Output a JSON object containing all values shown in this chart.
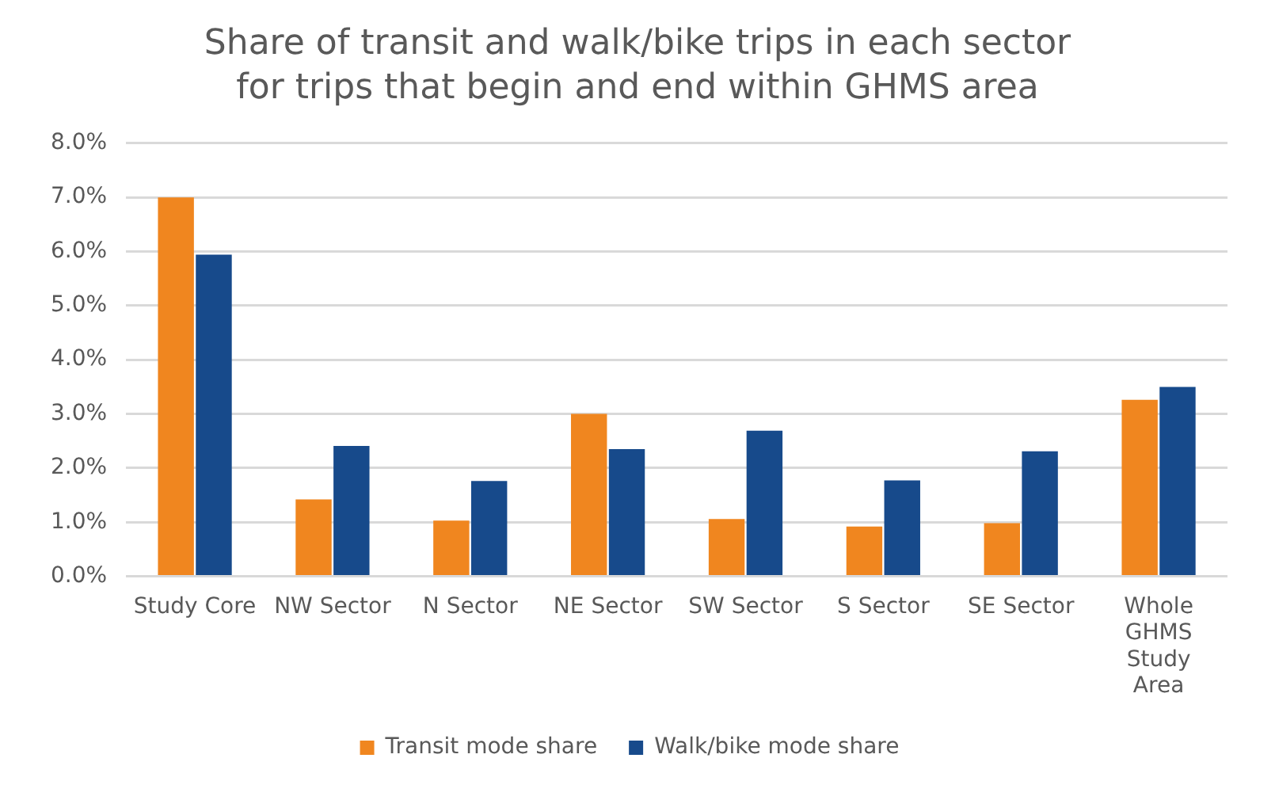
{
  "chart_data": {
    "type": "bar",
    "title": "Share of transit and walk/bike trips in each sector for trips that begin and end within GHMS area",
    "categories": [
      "Study Core",
      "NW Sector",
      "N Sector",
      "NE Sector",
      "SW Sector",
      "S Sector",
      "SE Sector",
      "Whole GHMS Study Area"
    ],
    "series": [
      {
        "name": "Transit mode share",
        "color": "#f0861f",
        "values": [
          7.0,
          1.42,
          1.03,
          3.0,
          1.06,
          0.92,
          0.98,
          3.26
        ]
      },
      {
        "name": "Walk/bike mode share",
        "color": "#174a8b",
        "values": [
          5.94,
          2.41,
          1.76,
          2.35,
          2.69,
          1.77,
          2.31,
          3.5
        ]
      }
    ],
    "ylim": [
      0,
      8
    ],
    "yticks": [
      {
        "value": 0,
        "label": "0.0%"
      },
      {
        "value": 1,
        "label": "1.0%"
      },
      {
        "value": 2,
        "label": "2.0%"
      },
      {
        "value": 3,
        "label": "3.0%"
      },
      {
        "value": 4,
        "label": "4.0%"
      },
      {
        "value": 5,
        "label": "5.0%"
      },
      {
        "value": 6,
        "label": "6.0%"
      },
      {
        "value": 7,
        "label": "7.0%"
      },
      {
        "value": 8,
        "label": "8.0%"
      }
    ],
    "grid": "y",
    "legend": "bottom"
  }
}
